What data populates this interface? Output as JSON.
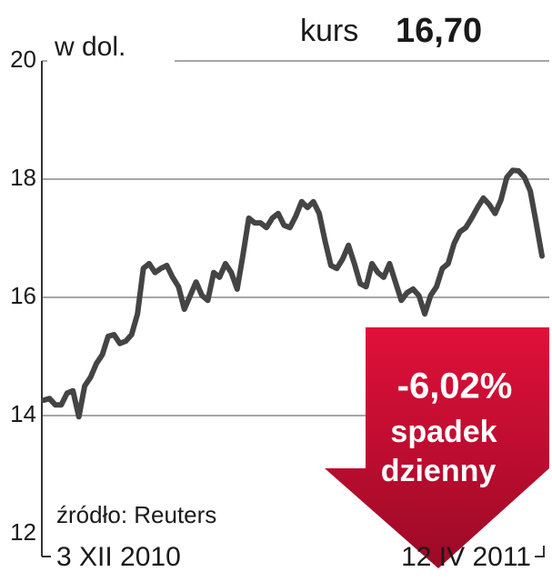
{
  "chart_data": {
    "type": "line",
    "y_label": "w dol.",
    "price_label": "kurs",
    "price": "16,70",
    "change": "-6,02%",
    "change_text_1": "spadek",
    "change_text_2": "dzienny",
    "source": "źródło: Reuters",
    "categories": [
      "3 XII 2010",
      null,
      null,
      null,
      null,
      null,
      null,
      null,
      null,
      null,
      null,
      null,
      null,
      null,
      null,
      null,
      null,
      null,
      null,
      null,
      null,
      null,
      null,
      null,
      null,
      null,
      null,
      null,
      null,
      null,
      null,
      null,
      null,
      null,
      null,
      null,
      null,
      null,
      null,
      null,
      null,
      null,
      null,
      null,
      null,
      null,
      null,
      null,
      null,
      null,
      null,
      null,
      null,
      null,
      null,
      null,
      null,
      null,
      null,
      null,
      null,
      null,
      null,
      null,
      null,
      null,
      null,
      null,
      null,
      null,
      null,
      null,
      null,
      null,
      null,
      null,
      null,
      null,
      null,
      null,
      null,
      null,
      null,
      null,
      null,
      "12 IV 2011"
    ],
    "series": [
      {
        "color": "#444444",
        "values": [
          14.26,
          14.29,
          14.18,
          14.18,
          14.38,
          14.42,
          13.98,
          14.5,
          14.65,
          14.88,
          15.03,
          15.34,
          15.37,
          15.22,
          15.26,
          15.37,
          15.72,
          16.49,
          16.57,
          16.42,
          16.49,
          16.54,
          16.34,
          16.18,
          15.8,
          16.03,
          16.26,
          16.03,
          15.95,
          16.42,
          16.34,
          16.57,
          16.42,
          16.14,
          16.72,
          17.34,
          17.26,
          17.26,
          17.18,
          17.34,
          17.42,
          17.22,
          17.18,
          17.37,
          17.62,
          17.52,
          17.62,
          17.42,
          16.95,
          16.54,
          16.49,
          16.65,
          16.88,
          16.57,
          16.23,
          16.18,
          16.57,
          16.42,
          16.34,
          16.57,
          16.26,
          15.95,
          16.08,
          16.14,
          16.03,
          15.72,
          16.03,
          16.18,
          16.49,
          16.57,
          16.91,
          17.11,
          17.18,
          17.34,
          17.52,
          17.68,
          17.57,
          17.42,
          17.65,
          18.03,
          18.15,
          18.14,
          18.03,
          17.8,
          17.26,
          16.7
        ]
      }
    ],
    "ylim": [
      12,
      20
    ],
    "yticks": [
      12,
      14,
      16,
      18,
      20
    ],
    "grid": true
  }
}
